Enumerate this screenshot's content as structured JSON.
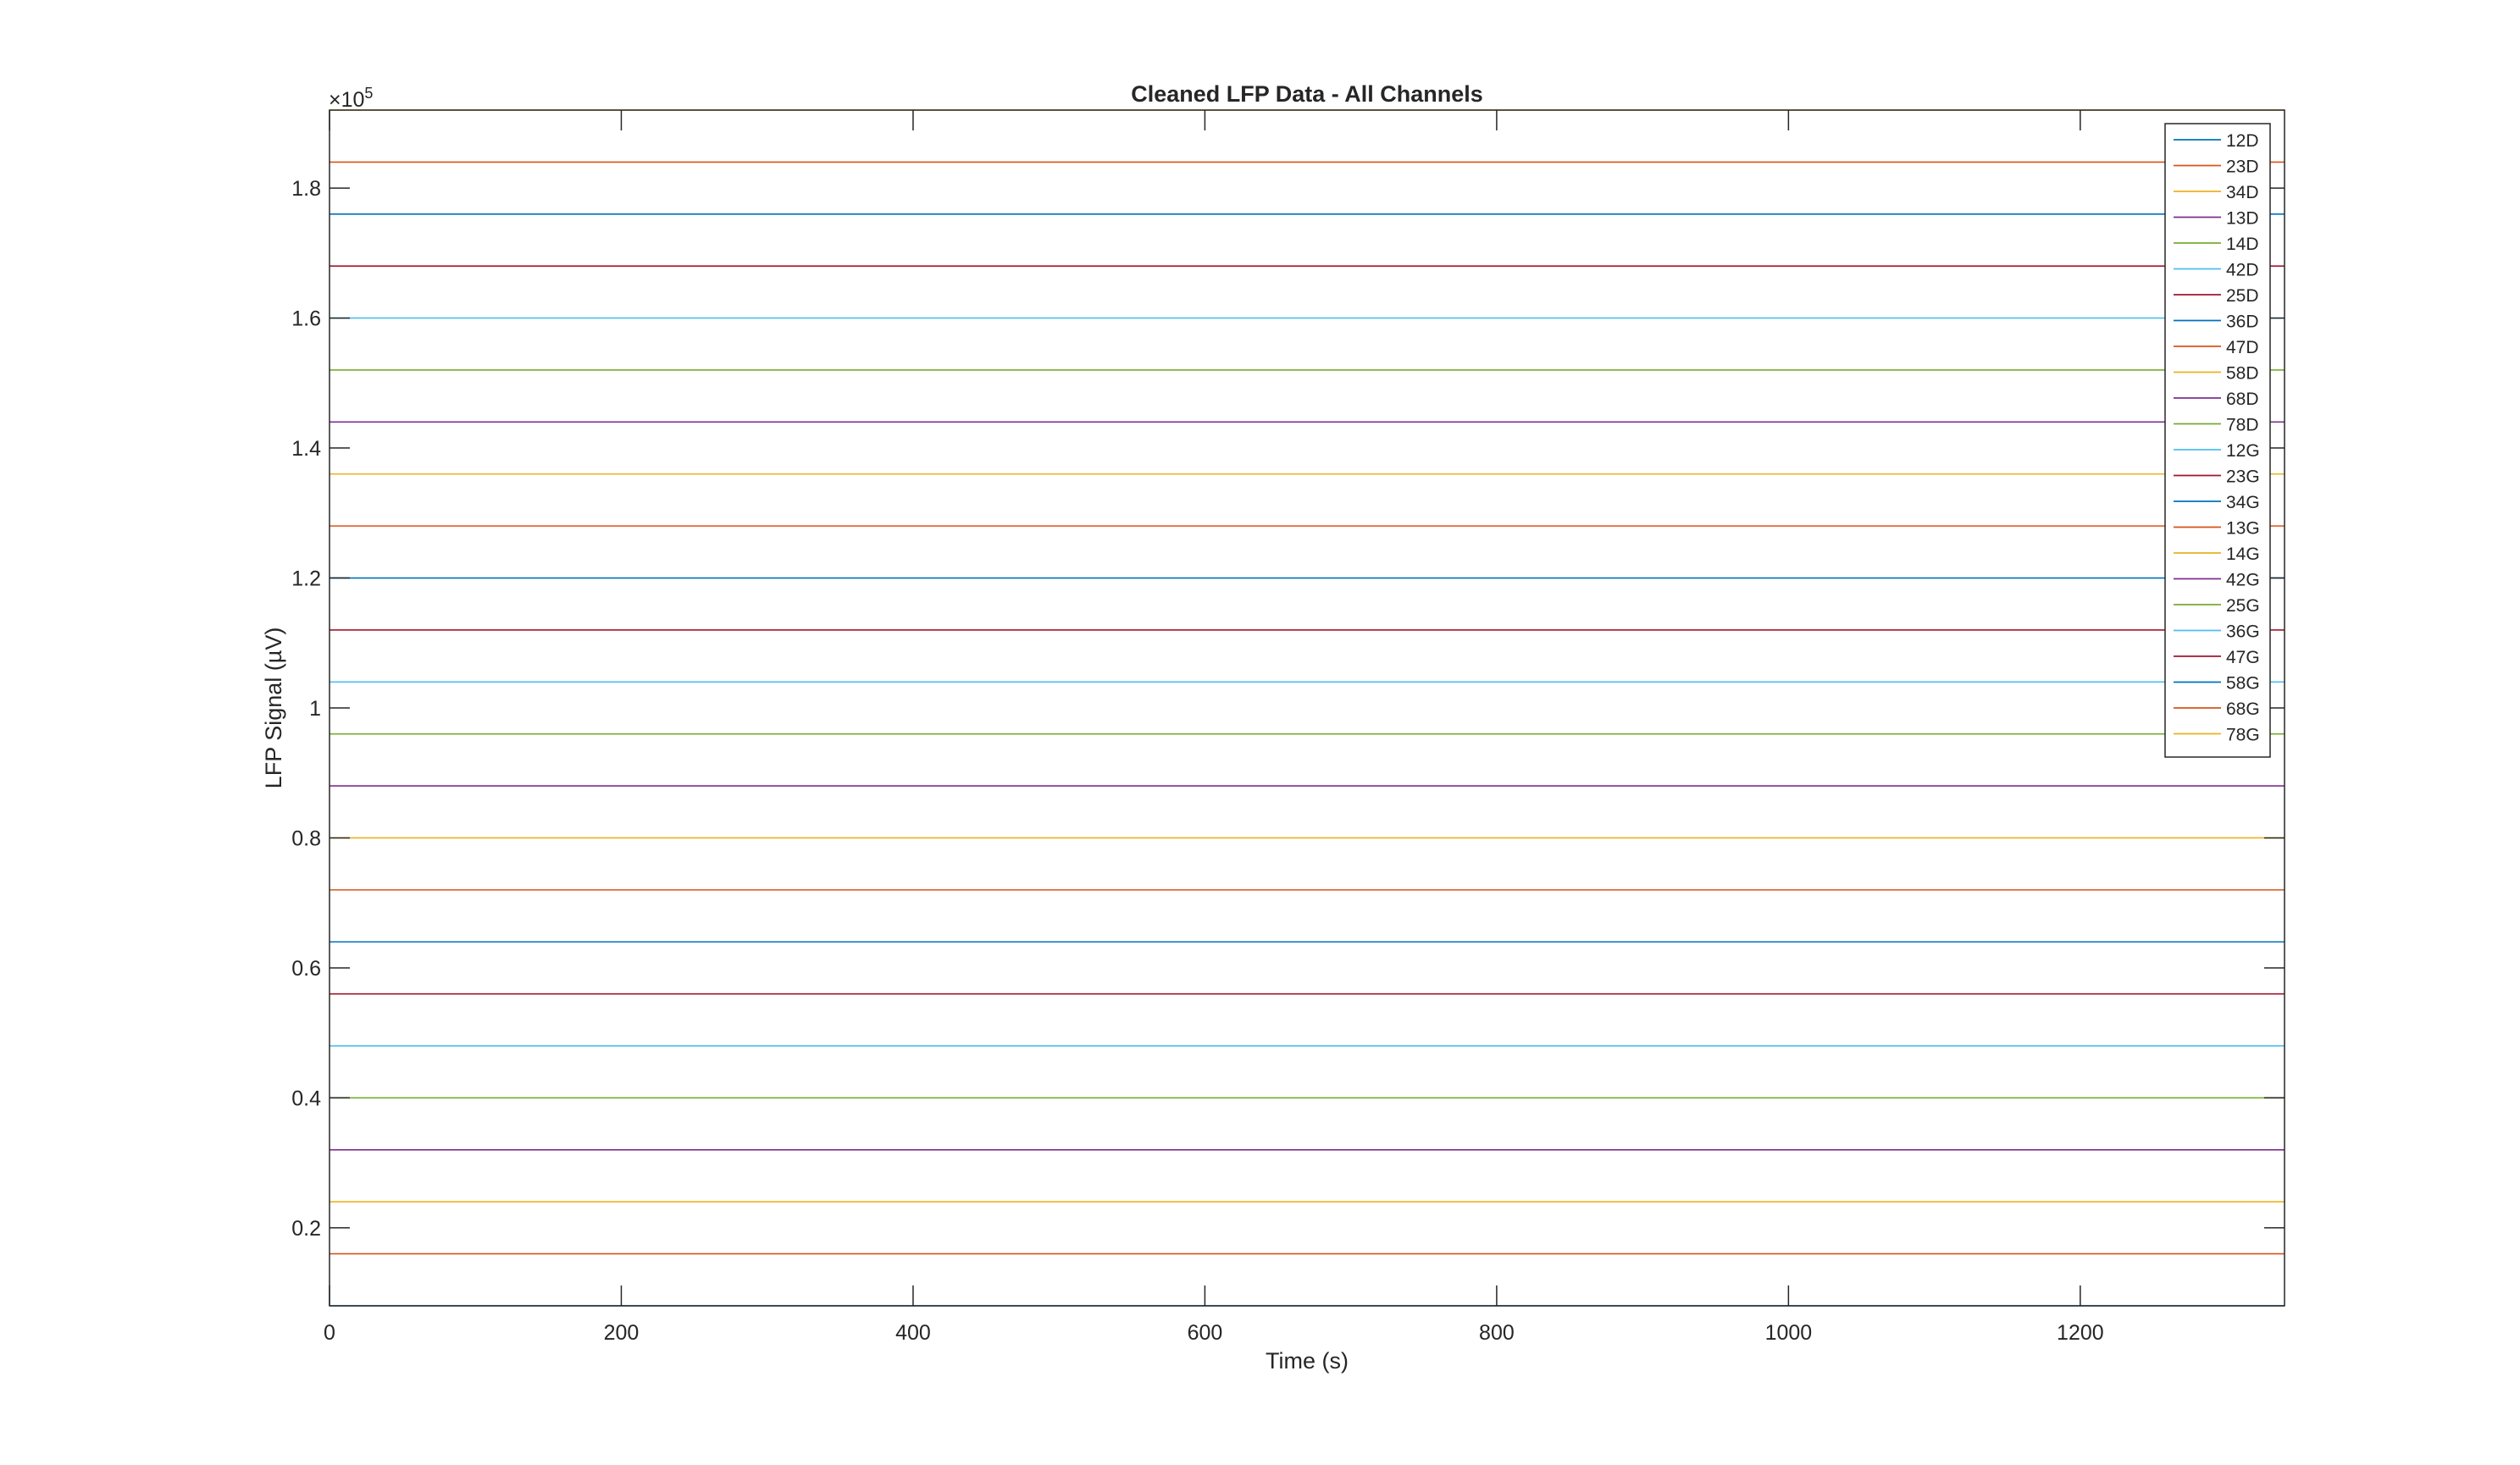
{
  "chart_data": {
    "type": "line",
    "title": "Cleaned LFP Data - All Channels",
    "xlabel": "Time (s)",
    "ylabel": "LFP Signal (µV)",
    "y_exponent_label": "×10",
    "y_exponent_power": "5",
    "xlim": [
      0,
      1340
    ],
    "ylim": [
      8000,
      192000
    ],
    "xticks": [
      0,
      200,
      400,
      600,
      800,
      1000,
      1200
    ],
    "xtick_labels": [
      "0",
      "200",
      "400",
      "600",
      "800",
      "1000",
      "1200"
    ],
    "yticks": [
      20000,
      40000,
      60000,
      80000,
      100000,
      120000,
      140000,
      160000,
      180000
    ],
    "ytick_labels": [
      "0.2",
      "0.4",
      "0.6",
      "0.8",
      "1",
      "1.2",
      "1.4",
      "1.6",
      "1.8"
    ],
    "grid": false,
    "legend_position": "top-right",
    "series": [
      {
        "name": "12D",
        "color": "#0072BD",
        "offset": 8000
      },
      {
        "name": "23D",
        "color": "#D95319",
        "offset": 16000
      },
      {
        "name": "34D",
        "color": "#EDB120",
        "offset": 24000
      },
      {
        "name": "13D",
        "color": "#7E2F8E",
        "offset": 32000
      },
      {
        "name": "14D",
        "color": "#77AC30",
        "offset": 40000
      },
      {
        "name": "42D",
        "color": "#4DBEEE",
        "offset": 48000
      },
      {
        "name": "25D",
        "color": "#A2142F",
        "offset": 56000
      },
      {
        "name": "36D",
        "color": "#0072BD",
        "offset": 64000
      },
      {
        "name": "47D",
        "color": "#D95319",
        "offset": 72000
      },
      {
        "name": "58D",
        "color": "#EDB120",
        "offset": 80000
      },
      {
        "name": "68D",
        "color": "#7E2F8E",
        "offset": 88000
      },
      {
        "name": "78D",
        "color": "#77AC30",
        "offset": 96000
      },
      {
        "name": "12G",
        "color": "#4DBEEE",
        "offset": 104000
      },
      {
        "name": "23G",
        "color": "#A2142F",
        "offset": 112000
      },
      {
        "name": "34G",
        "color": "#0072BD",
        "offset": 120000
      },
      {
        "name": "13G",
        "color": "#D95319",
        "offset": 128000
      },
      {
        "name": "14G",
        "color": "#EDB120",
        "offset": 136000
      },
      {
        "name": "42G",
        "color": "#7E2F8E",
        "offset": 144000
      },
      {
        "name": "25G",
        "color": "#77AC30",
        "offset": 152000
      },
      {
        "name": "36G",
        "color": "#4DBEEE",
        "offset": 160000
      },
      {
        "name": "47G",
        "color": "#A2142F",
        "offset": 168000
      },
      {
        "name": "58G",
        "color": "#0072BD",
        "offset": 176000
      },
      {
        "name": "68G",
        "color": "#D95319",
        "offset": 184000
      },
      {
        "name": "78G",
        "color": "#EDB120",
        "offset": 192000
      }
    ]
  }
}
